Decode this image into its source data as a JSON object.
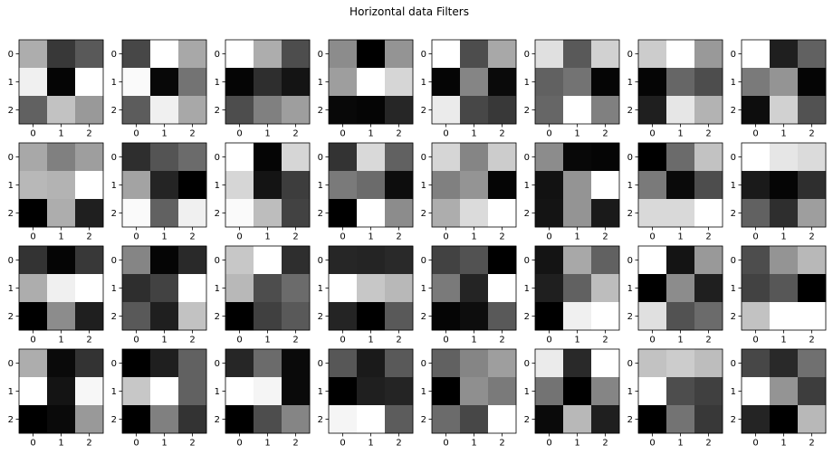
{
  "title": "Horizontal data Filters",
  "chart_data": {
    "type": "heatmap",
    "title": "Horizontal data Filters",
    "colormap": "gray",
    "value_range": [
      0,
      1
    ],
    "grid": false,
    "layout": "4 rows x 8 columns of 3x3 filters",
    "x_ticks": [
      "0",
      "1",
      "2"
    ],
    "y_ticks": [
      "0",
      "1",
      "2"
    ],
    "filters": [
      [
        [
          0.68,
          0.22,
          0.35
        ],
        [
          0.94,
          0.02,
          1.0
        ],
        [
          0.38,
          0.76,
          0.6
        ]
      ],
      [
        [
          0.28,
          1.0,
          0.66
        ],
        [
          0.98,
          0.03,
          0.45
        ],
        [
          0.36,
          0.94,
          0.66
        ]
      ],
      [
        [
          1.0,
          0.68,
          0.3
        ],
        [
          0.02,
          0.18,
          0.08
        ],
        [
          0.3,
          0.5,
          0.62
        ]
      ],
      [
        [
          0.55,
          0.0,
          0.58
        ],
        [
          0.62,
          1.0,
          0.84
        ],
        [
          0.03,
          0.02,
          0.15
        ]
      ],
      [
        [
          1.0,
          0.3,
          0.66
        ],
        [
          0.02,
          0.52,
          0.04
        ],
        [
          0.92,
          0.28,
          0.22
        ]
      ],
      [
        [
          0.88,
          0.35,
          0.82
        ],
        [
          0.38,
          0.45,
          0.02
        ],
        [
          0.4,
          1.0,
          0.5
        ]
      ],
      [
        [
          0.8,
          1.0,
          0.6
        ],
        [
          0.02,
          0.4,
          0.3
        ],
        [
          0.12,
          0.9,
          0.7
        ]
      ],
      [
        [
          1.0,
          0.12,
          0.38
        ],
        [
          0.48,
          0.58,
          0.02
        ],
        [
          0.05,
          0.82,
          0.32
        ]
      ],
      [
        [
          0.66,
          0.5,
          0.62
        ],
        [
          0.72,
          0.7,
          1.0
        ],
        [
          0.0,
          0.68,
          0.12
        ]
      ],
      [
        [
          0.18,
          0.33,
          0.42
        ],
        [
          0.64,
          0.14,
          0.0
        ],
        [
          0.98,
          0.38,
          0.94
        ]
      ],
      [
        [
          1.0,
          0.02,
          0.84
        ],
        [
          0.84,
          0.08,
          0.24
        ],
        [
          0.98,
          0.74,
          0.26
        ]
      ],
      [
        [
          0.2,
          0.85,
          0.38
        ],
        [
          0.48,
          0.42,
          0.05
        ],
        [
          0.0,
          1.0,
          0.55
        ]
      ],
      [
        [
          0.84,
          0.52,
          0.8
        ],
        [
          0.5,
          0.58,
          0.02
        ],
        [
          0.68,
          0.86,
          1.0
        ]
      ],
      [
        [
          0.55,
          0.03,
          0.02
        ],
        [
          0.07,
          0.58,
          1.0
        ],
        [
          0.08,
          0.58,
          0.1
        ]
      ],
      [
        [
          0.0,
          0.42,
          0.76
        ],
        [
          0.48,
          0.04,
          0.3
        ],
        [
          0.85,
          0.85,
          1.0
        ]
      ],
      [
        [
          1.0,
          0.9,
          0.86
        ],
        [
          0.1,
          0.02,
          0.18
        ],
        [
          0.38,
          0.18,
          0.62
        ]
      ],
      [
        [
          0.2,
          0.02,
          0.22
        ],
        [
          0.68,
          0.94,
          1.0
        ],
        [
          0.0,
          0.55,
          0.12
        ]
      ],
      [
        [
          0.52,
          0.02,
          0.16
        ],
        [
          0.18,
          0.26,
          1.0
        ],
        [
          0.35,
          0.12,
          0.76
        ]
      ],
      [
        [
          0.78,
          1.0,
          0.18
        ],
        [
          0.72,
          0.3,
          0.42
        ],
        [
          0.0,
          0.25,
          0.35
        ]
      ],
      [
        [
          0.15,
          0.14,
          0.16
        ],
        [
          1.0,
          0.78,
          0.72
        ],
        [
          0.14,
          0.0,
          0.35
        ]
      ],
      [
        [
          0.26,
          0.32,
          0.0
        ],
        [
          0.48,
          0.14,
          1.0
        ],
        [
          0.02,
          0.05,
          0.35
        ]
      ],
      [
        [
          0.08,
          0.66,
          0.38
        ],
        [
          0.12,
          0.38,
          0.74
        ],
        [
          0.0,
          0.94,
          1.0
        ]
      ],
      [
        [
          1.0,
          0.08,
          0.6
        ],
        [
          0.0,
          0.55,
          0.12
        ],
        [
          0.88,
          0.32,
          0.42
        ]
      ],
      [
        [
          0.3,
          0.58,
          0.72
        ],
        [
          0.26,
          0.34,
          0.0
        ],
        [
          0.76,
          1.0,
          1.0
        ]
      ],
      [
        [
          0.68,
          0.04,
          0.2
        ],
        [
          1.0,
          0.08,
          0.97
        ],
        [
          0.0,
          0.04,
          0.6
        ]
      ],
      [
        [
          0.0,
          0.12,
          0.38
        ],
        [
          0.78,
          1.0,
          0.38
        ],
        [
          0.0,
          0.5,
          0.2
        ]
      ],
      [
        [
          0.15,
          0.42,
          0.04
        ],
        [
          1.0,
          0.96,
          0.04
        ],
        [
          0.0,
          0.3,
          0.52
        ]
      ],
      [
        [
          0.34,
          0.1,
          0.35
        ],
        [
          0.0,
          0.12,
          0.14
        ],
        [
          0.96,
          1.0,
          0.36
        ]
      ],
      [
        [
          0.38,
          0.52,
          0.62
        ],
        [
          0.0,
          0.56,
          0.48
        ],
        [
          0.42,
          0.28,
          1.0
        ]
      ],
      [
        [
          0.92,
          0.16,
          1.0
        ],
        [
          0.45,
          0.0,
          0.52
        ],
        [
          0.04,
          0.72,
          0.12
        ]
      ],
      [
        [
          0.76,
          0.8,
          0.74
        ],
        [
          1.0,
          0.3,
          0.25
        ],
        [
          0.0,
          0.45,
          0.22
        ]
      ],
      [
        [
          0.28,
          0.16,
          0.44
        ],
        [
          1.0,
          0.58,
          0.24
        ],
        [
          0.14,
          0.0,
          0.72
        ]
      ]
    ]
  }
}
